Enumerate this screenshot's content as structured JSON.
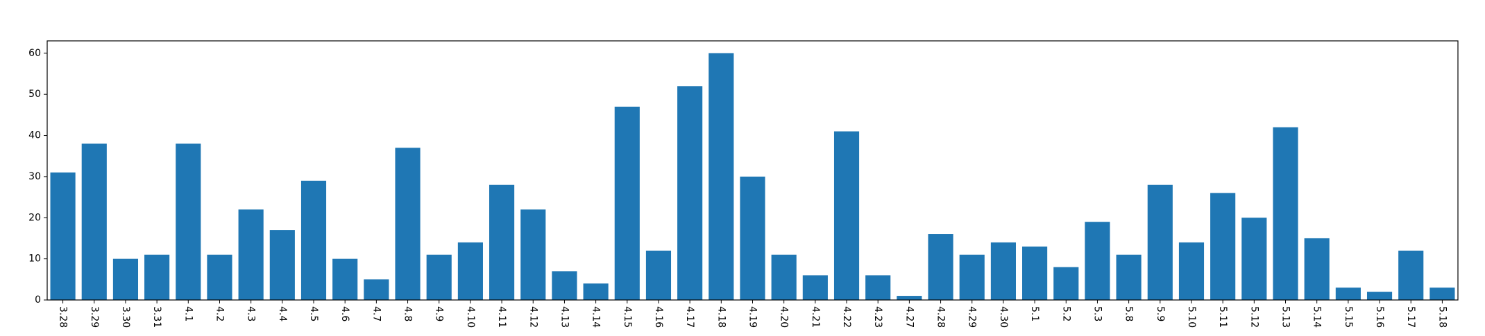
{
  "chart_data": {
    "type": "bar",
    "title": "",
    "xlabel": "",
    "ylabel": "",
    "categories": [
      "3.28",
      "3.29",
      "3.30",
      "3.31",
      "4.1",
      "4.2",
      "4.3",
      "4.4",
      "4.5",
      "4.6",
      "4.7",
      "4.8",
      "4.9",
      "4.10",
      "4.11",
      "4.12",
      "4.13",
      "4.14",
      "4.15",
      "4.16",
      "4.17",
      "4.18",
      "4.19",
      "4.20",
      "4.21",
      "4.22",
      "4.23",
      "4.27",
      "4.28",
      "4.29",
      "4.30",
      "5.1",
      "5.2",
      "5.3",
      "5.8",
      "5.9",
      "5.10",
      "5.11",
      "5.12",
      "5.13",
      "5.14",
      "5.15",
      "5.16",
      "5.17",
      "5.18"
    ],
    "values": [
      31,
      38,
      10,
      11,
      38,
      11,
      22,
      17,
      29,
      10,
      5,
      37,
      11,
      14,
      28,
      22,
      7,
      4,
      47,
      12,
      52,
      60,
      30,
      11,
      6,
      41,
      6,
      1,
      16,
      11,
      14,
      13,
      8,
      19,
      11,
      28,
      14,
      26,
      20,
      42,
      15,
      3,
      2,
      12,
      3
    ],
    "ylim": [
      0,
      63
    ],
    "yticks": [
      0,
      10,
      20,
      30,
      40,
      50,
      60
    ],
    "x_tick_rotation": "vertical",
    "bar_color": "#1f77b4",
    "grid": false,
    "legend": "none"
  }
}
